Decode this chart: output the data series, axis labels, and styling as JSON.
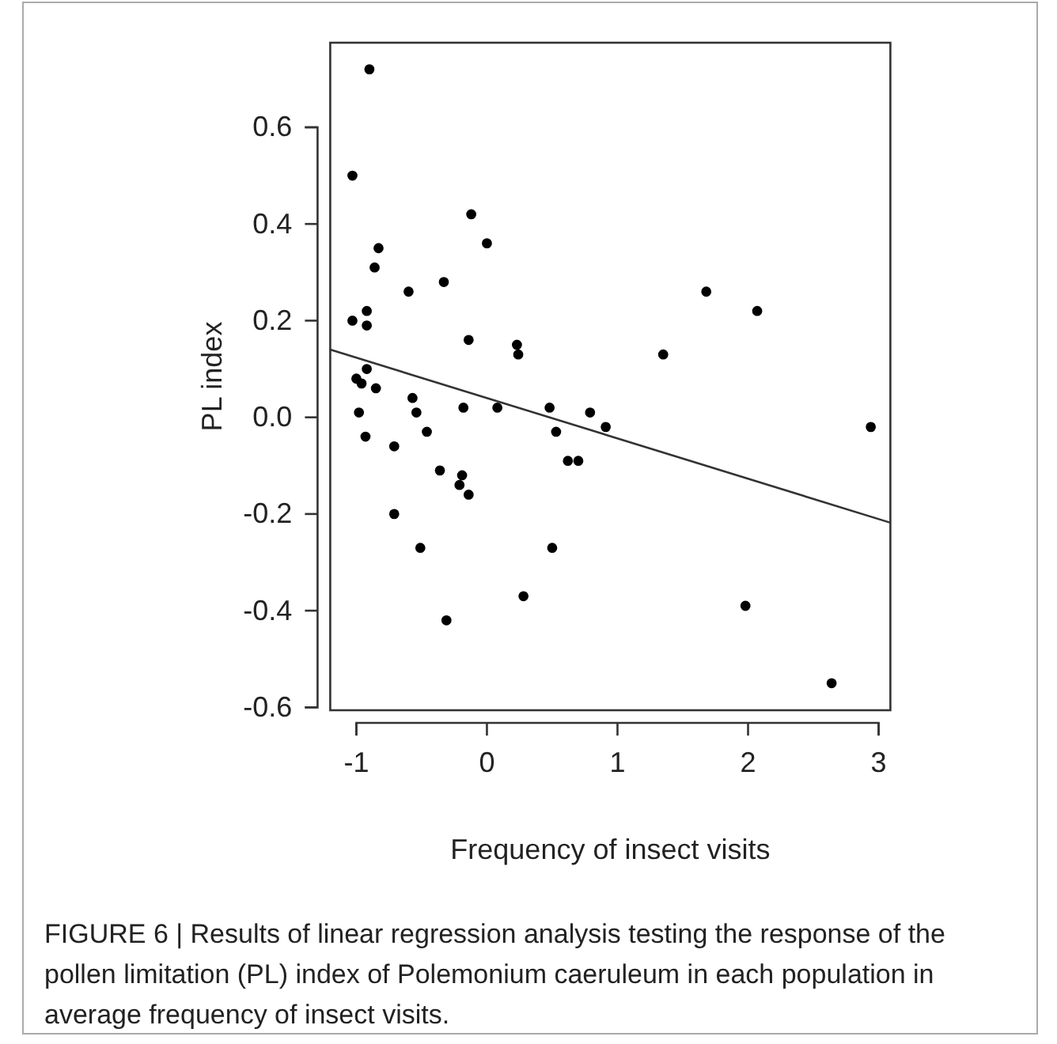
{
  "chart_data": {
    "type": "scatter",
    "xlabel": "Frequency of insect visits",
    "ylabel": "PL index",
    "xlim": [
      -1.2,
      3.09
    ],
    "ylim": [
      -0.606,
      0.775
    ],
    "xticks": [
      -1,
      0,
      1,
      2,
      3
    ],
    "yticks": [
      {
        "value": -0.6,
        "label": "-0.6"
      },
      {
        "value": -0.4,
        "label": "-0.4"
      },
      {
        "value": -0.2,
        "label": "-0.2"
      },
      {
        "value": 0,
        "label": "0.0"
      },
      {
        "value": 0.2,
        "label": "0.2"
      },
      {
        "value": 0.4,
        "label": "0.4"
      },
      {
        "value": 0.6,
        "label": "0.6"
      }
    ],
    "grid": false,
    "series": [
      {
        "color": "#000000",
        "marker": "circle",
        "x": [
          -0.9,
          -1.03,
          -0.83,
          -0.86,
          -0.6,
          -0.33,
          -0.12,
          0.0,
          -1.03,
          -0.92,
          -0.92,
          -0.14,
          0.23,
          0.24,
          -1.0,
          -0.92,
          -0.96,
          -0.85,
          -0.57,
          -0.54,
          -0.98,
          -0.18,
          0.08,
          0.48,
          0.53,
          -0.93,
          -0.46,
          -0.71,
          0.62,
          0.7,
          -0.36,
          -0.19,
          -0.21,
          -0.14,
          1.68,
          2.07,
          1.35,
          0.79,
          0.91,
          2.94,
          -0.71,
          -0.51,
          0.5,
          0.28,
          -0.31,
          1.98,
          2.64
        ],
        "values": [
          0.72,
          0.5,
          0.35,
          0.31,
          0.26,
          0.28,
          0.42,
          0.36,
          0.2,
          0.22,
          0.19,
          0.16,
          0.15,
          0.13,
          0.08,
          0.1,
          0.07,
          0.06,
          0.04,
          0.01,
          0.01,
          0.02,
          0.02,
          0.02,
          -0.03,
          -0.04,
          -0.03,
          -0.06,
          -0.09,
          -0.09,
          -0.11,
          -0.12,
          -0.14,
          -0.16,
          0.26,
          0.22,
          0.13,
          0.01,
          -0.02,
          -0.02,
          -0.2,
          -0.27,
          -0.27,
          -0.37,
          -0.42,
          -0.39,
          -0.55
        ]
      },
      {
        "type": "line",
        "color": "#333333",
        "x": [
          -1.2,
          3.09
        ],
        "values": [
          0.14,
          -0.218
        ],
        "marker": "none",
        "line_style": "solid"
      }
    ],
    "annotations": [
      "FIGURE 6 | Results of linear regression analysis testing the response of the pollen limitation (PL) index of Polemonium caeruleum in each population in average frequency of insect visits."
    ]
  }
}
